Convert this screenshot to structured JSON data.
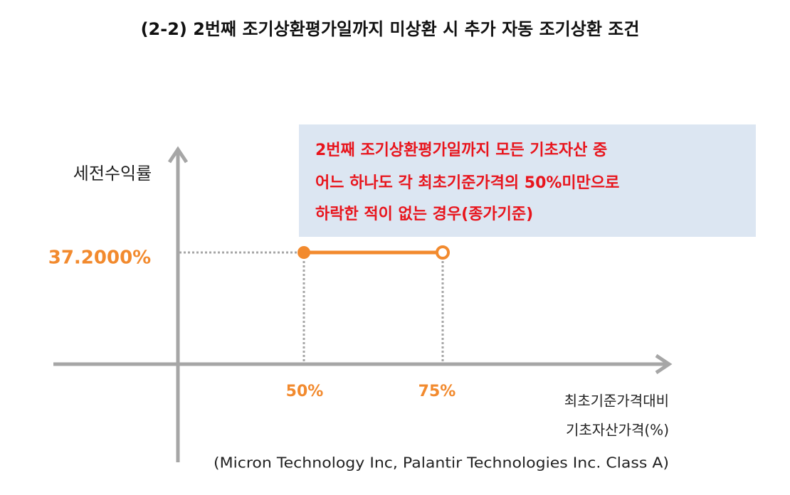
{
  "title": "(2-2) 2번째 조기상환평가일까지 미상환 시 추가 자동 조기상환 조건",
  "callout": {
    "lines": [
      "2번째 조기상환평가일까지 모든 기초자산 중",
      "어느 하나도 각 최초기준가격의 50%미만으로",
      "하락한 적이 없는 경우(종가기준)"
    ]
  },
  "y_axis": {
    "label": "세전수익률",
    "level_label": "37.2000%"
  },
  "x_axis": {
    "tick_labels": [
      "50%",
      "75%"
    ],
    "label_lines": [
      "최초기준가격대비",
      "기초자산가격(%)",
      "(Micron Technology Inc, Palantir Technologies Inc. Class A)"
    ]
  }
}
